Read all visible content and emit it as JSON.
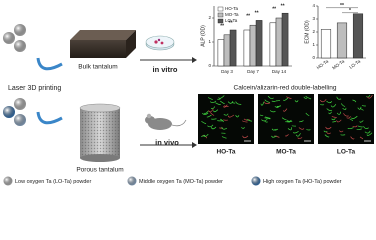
{
  "left": {
    "bulk_label": "Bulk tantalum",
    "in_vitro": "in vitro",
    "laser_label": "Laser 3D printing",
    "porous_label": "Porous tantalum",
    "in_vivo": "in vivo"
  },
  "alp_chart": {
    "type": "bar",
    "ylabel": "ALP (OD)",
    "categories": [
      "Day 3",
      "Day 7",
      "Day 14"
    ],
    "series": [
      {
        "name": "HO-Ta",
        "color": "#ffffff",
        "values": [
          1.1,
          1.5,
          1.8
        ]
      },
      {
        "name": "MO-Ta",
        "color": "#bdbdbd",
        "values": [
          1.3,
          1.7,
          2.0
        ]
      },
      {
        "name": "LO-Ta",
        "color": "#555555",
        "values": [
          1.5,
          1.9,
          2.2
        ]
      }
    ],
    "ylim": [
      0,
      2.5
    ],
    "yticks": [
      0,
      1,
      2
    ],
    "annotations": [
      "**",
      "**",
      "**",
      "**",
      "**",
      "**"
    ]
  },
  "ecm_chart": {
    "type": "bar",
    "ylabel": "ECM (OD)",
    "categories": [
      "HO-Ta",
      "MO-Ta",
      "LO-Ta"
    ],
    "values": [
      2.2,
      2.7,
      3.4
    ],
    "colors": [
      "#ffffff",
      "#bdbdbd",
      "#555555"
    ],
    "ylim": [
      0,
      4
    ],
    "yticks": [
      0,
      1,
      2,
      3,
      4
    ],
    "annotations": [
      "*",
      "**"
    ]
  },
  "labelling": {
    "title": "Calcein/alizarin-red double-labelling",
    "images": [
      "HO-Ta",
      "MO-Ta",
      "LO-Ta"
    ]
  },
  "legend": [
    {
      "label": "Low oxygen Ta (LO-Ta) powder",
      "color": "#c4c4c4"
    },
    {
      "label": "Middle oxygen Ta (MO-Ta) powder",
      "color": "#9ab7d6"
    },
    {
      "label": "High oxygen Ta (HO-Ta) powder",
      "color": "#3f7fc0"
    }
  ]
}
